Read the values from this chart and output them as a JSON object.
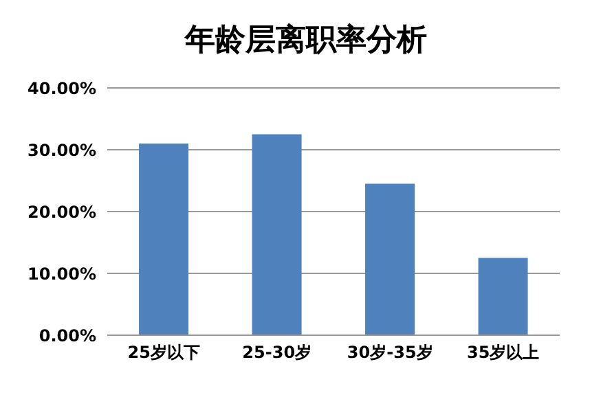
{
  "chart_data": {
    "type": "bar",
    "title": "年龄层离职率分析",
    "categories": [
      "25岁以下",
      "25-30岁",
      "30岁-35岁",
      "35岁以上"
    ],
    "values": [
      31,
      32.5,
      24.5,
      12.5
    ],
    "color": "#4f81bd",
    "ylim": [
      0,
      40
    ],
    "yticks": [
      {
        "value": 0,
        "label": "0.00%"
      },
      {
        "value": 10,
        "label": "10.00%"
      },
      {
        "value": 20,
        "label": "20.00%"
      },
      {
        "value": 30,
        "label": "30.00%"
      },
      {
        "value": 40,
        "label": "40.00%"
      }
    ],
    "grid": "y"
  }
}
